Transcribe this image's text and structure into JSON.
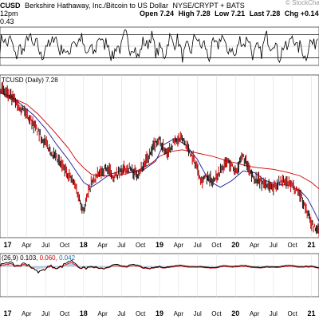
{
  "header": {
    "symbol": "CUSD",
    "company": "Berkshire Hathaway, Inc./Bitcoin to US Dollar",
    "exchange": "NYSE/CRYPT + BATS",
    "time": "12pm",
    "open_label": "Open",
    "open": "7.24",
    "high_label": "High",
    "high": "7.28",
    "low_label": "Low",
    "low": "7.21",
    "last_label": "Last",
    "last": "7.28",
    "chg_label": "Chg",
    "chg": "+0.14",
    "indicator_value": "0.43"
  },
  "watermark": "© StockCharts",
  "chart_data": [
    {
      "type": "line",
      "panel": "top-oscillator",
      "label": "0.43",
      "ylim": [
        -1,
        1
      ],
      "reference_lines": [
        0.6,
        0,
        -0.6
      ]
    },
    {
      "type": "line",
      "panel": "price",
      "title": "TCUSD (Daily) 7.28",
      "x_ticks": [
        "17",
        "Apr",
        "Jul",
        "Oct",
        "18",
        "Apr",
        "Jul",
        "Oct",
        "19",
        "Apr",
        "Jul",
        "Oct",
        "20",
        "Apr",
        "Jul",
        "Oct",
        "21"
      ],
      "x_tick_positions": [
        2017.0,
        2017.25,
        2017.5,
        2017.75,
        2018.0,
        2018.25,
        2018.5,
        2018.75,
        2019.0,
        2019.25,
        2019.5,
        2019.75,
        2020.0,
        2020.25,
        2020.5,
        2020.75,
        2021.0
      ],
      "ylim": [
        5,
        105
      ],
      "series": [
        {
          "color": "#cc0000",
          "x": [
            2016.9,
            2017.0,
            2017.1,
            2017.25,
            2017.4,
            2017.6,
            2017.8,
            2017.9,
            2018.0,
            2018.1,
            2018.2,
            2018.35,
            2018.55,
            2018.75,
            2018.9,
            2019.0,
            2019.15,
            2019.3,
            2019.5,
            2019.7,
            2019.9,
            2020.0,
            2020.15,
            2020.3,
            2020.5,
            2020.7,
            2020.85,
            2021.0,
            2021.1
          ],
          "values": [
            94,
            92,
            90,
            87,
            81,
            71,
            60,
            53,
            48,
            44,
            43,
            43,
            44,
            47,
            51,
            55,
            58,
            59,
            57,
            55,
            52,
            51,
            49,
            48,
            47,
            45,
            43,
            39,
            35
          ]
        },
        {
          "color": "#1a1a99",
          "x": [
            2016.9,
            2017.05,
            2017.2,
            2017.35,
            2017.5,
            2017.65,
            2017.8,
            2017.9,
            2018.0,
            2018.1,
            2018.2,
            2018.35,
            2018.5,
            2018.65,
            2018.8,
            2018.95,
            2019.05,
            2019.2,
            2019.35,
            2019.5,
            2019.65,
            2019.8,
            2019.95,
            2020.1,
            2020.25,
            2020.4,
            2020.55,
            2020.7,
            2020.85,
            2020.95,
            2021.05,
            2021.1
          ],
          "values": [
            94,
            92,
            86,
            80,
            72,
            62,
            53,
            46,
            39,
            36,
            39,
            44,
            46,
            45,
            47,
            52,
            62,
            66,
            62,
            53,
            40,
            36,
            40,
            46,
            45,
            40,
            38,
            37,
            34,
            29,
            20,
            15
          ]
        },
        {
          "color": "#222222",
          "x": [
            2016.9,
            2017.0,
            2017.1,
            2017.2,
            2017.3,
            2017.4,
            2017.5,
            2017.6,
            2017.7,
            2017.8,
            2017.9,
            2017.95,
            2018.0,
            2018.05,
            2018.1,
            2018.2,
            2018.3,
            2018.4,
            2018.5,
            2018.6,
            2018.7,
            2018.8,
            2018.9,
            2018.95,
            2019.0,
            2019.05,
            2019.1,
            2019.2,
            2019.3,
            2019.4,
            2019.5,
            2019.55,
            2019.6,
            2019.7,
            2019.8,
            2019.9,
            2020.0,
            2020.05,
            2020.1,
            2020.2,
            2020.3,
            2020.4,
            2020.5,
            2020.6,
            2020.7,
            2020.8,
            2020.85,
            2020.9,
            2020.95,
            2021.0,
            2021.05,
            2021.1
          ],
          "values": [
            97,
            93,
            89,
            84,
            78,
            70,
            63,
            56,
            50,
            44,
            36,
            28,
            22,
            30,
            38,
            44,
            48,
            42,
            46,
            48,
            44,
            50,
            58,
            64,
            65,
            60,
            58,
            64,
            66,
            58,
            48,
            40,
            42,
            40,
            46,
            52,
            46,
            50,
            55,
            44,
            40,
            38,
            36,
            40,
            38,
            35,
            32,
            26,
            20,
            14,
            10,
            11
          ]
        }
      ]
    },
    {
      "type": "line",
      "panel": "macd",
      "label": "(26,9)",
      "macd": "0.103",
      "signal": "0.060",
      "histogram": "0.042",
      "x_ticks": [
        "17",
        "Apr",
        "Jul",
        "Oct",
        "18",
        "Apr",
        "Jul",
        "Oct",
        "19",
        "Apr",
        "Jul",
        "Oct",
        "20",
        "Apr",
        "Jul",
        "Oct",
        "21"
      ]
    }
  ]
}
